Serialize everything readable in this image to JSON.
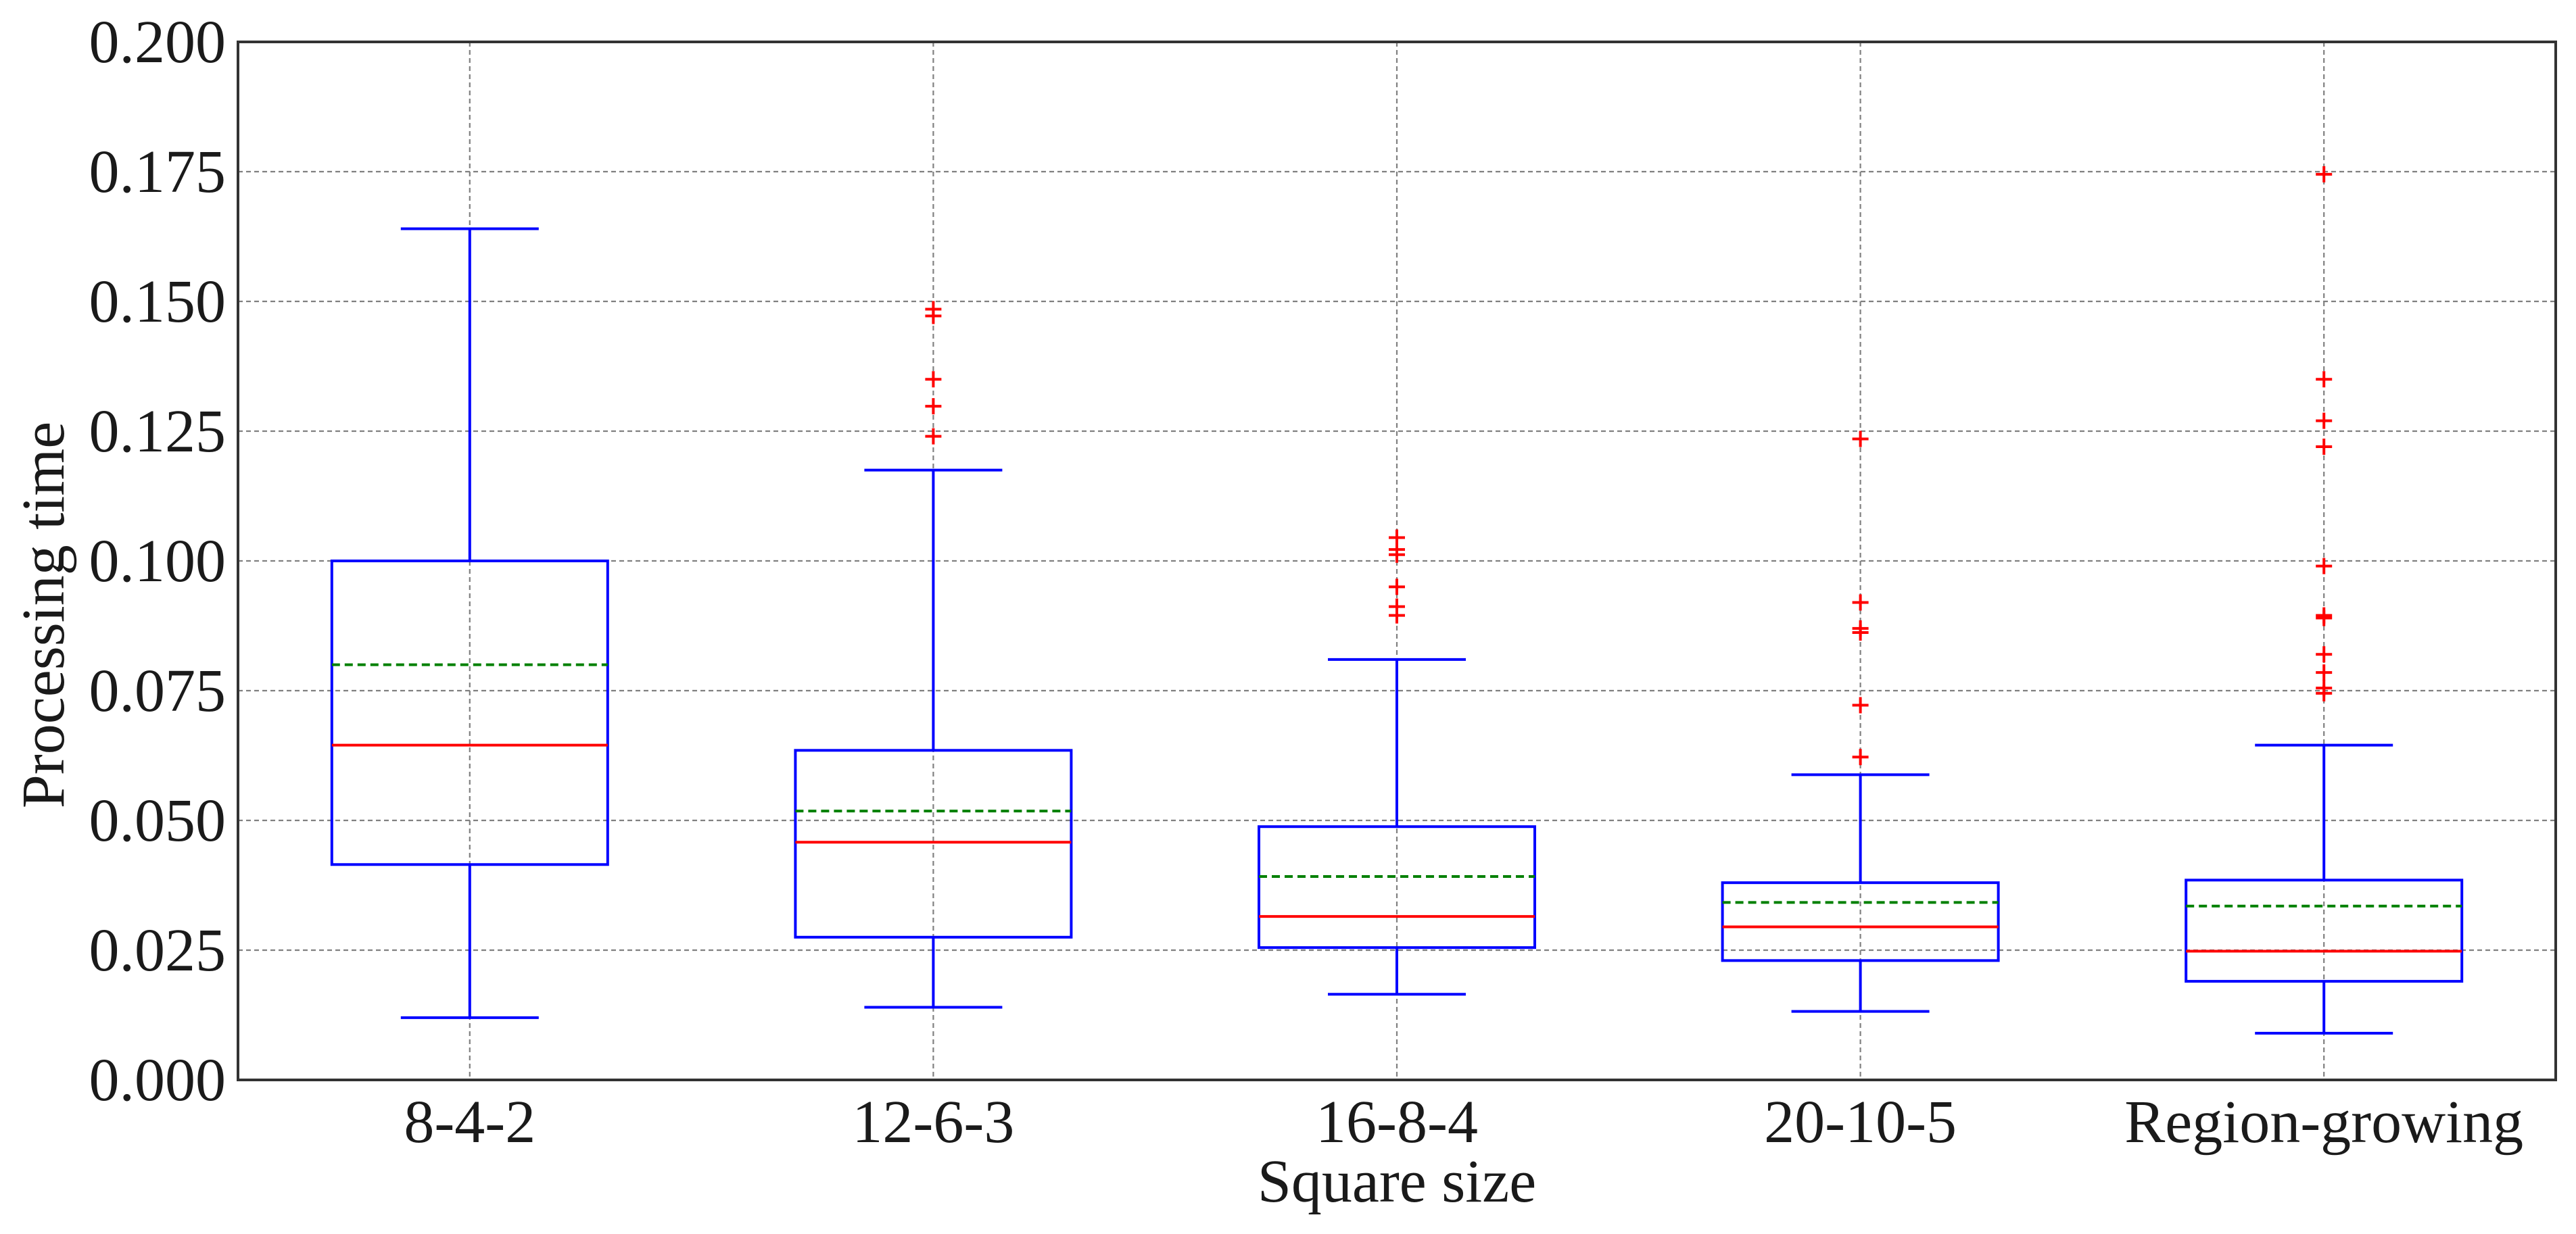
{
  "chart_data": {
    "type": "box",
    "xlabel": "Square size",
    "ylabel": "Processing time",
    "ylim": [
      0,
      0.2
    ],
    "yticks": [
      "0.000",
      "0.025",
      "0.050",
      "0.075",
      "0.100",
      "0.125",
      "0.150",
      "0.175",
      "0.200"
    ],
    "grid": true,
    "colors": {
      "box": "#0000ff",
      "median": "#ff0000",
      "mean": "#008000",
      "outlier": "#ff0000",
      "grid": "#808080",
      "axis": "#333333"
    },
    "categories": [
      "8-4-2",
      "12-6-3",
      "16-8-4",
      "20-10-5",
      "Region-growing"
    ],
    "boxes": [
      {
        "whisker_low": 0.012,
        "q1": 0.0415,
        "median": 0.0645,
        "mean": 0.08,
        "q3": 0.1,
        "whisker_high": 0.164,
        "outliers": []
      },
      {
        "whisker_low": 0.014,
        "q1": 0.0275,
        "median": 0.0458,
        "mean": 0.0518,
        "q3": 0.0635,
        "whisker_high": 0.1175,
        "outliers": [
          0.124,
          0.1298,
          0.135,
          0.1472,
          0.1485
        ]
      },
      {
        "whisker_low": 0.0165,
        "q1": 0.0255,
        "median": 0.0315,
        "mean": 0.0392,
        "q3": 0.0488,
        "whisker_high": 0.081,
        "outliers": [
          0.0895,
          0.0912,
          0.095,
          0.1012,
          0.1022,
          0.1045
        ]
      },
      {
        "whisker_low": 0.0132,
        "q1": 0.023,
        "median": 0.0295,
        "mean": 0.0342,
        "q3": 0.038,
        "whisker_high": 0.0588,
        "outliers": [
          0.0622,
          0.0722,
          0.0862,
          0.087,
          0.092,
          0.1235
        ]
      },
      {
        "whisker_low": 0.009,
        "q1": 0.019,
        "median": 0.0248,
        "mean": 0.0335,
        "q3": 0.0385,
        "whisker_high": 0.0645,
        "outliers": [
          0.0745,
          0.0755,
          0.0785,
          0.082,
          0.089,
          0.0895,
          0.099,
          0.122,
          0.127,
          0.135,
          0.1745
        ]
      }
    ]
  }
}
